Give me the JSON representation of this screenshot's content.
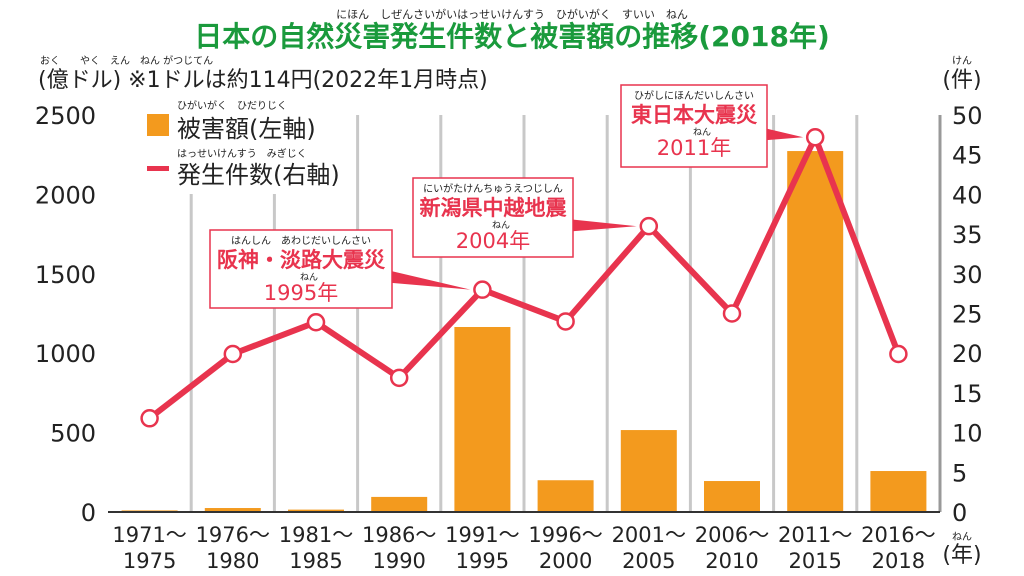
{
  "chart_data": {
    "type": "bar+line",
    "title": "日本の自然災害発生件数と被害額の推移(2018年)",
    "title_ruby": "にほん　しぜんさいがいはっせいけんすう　ひがいがく　すいい　ねん",
    "left_axis_label": "(億ドル) ※1ドルは約114円(2022年1月時点)",
    "left_axis_ruby": "おく　　やく　えん　ねん がつじてん",
    "right_axis_label": "(件)",
    "right_axis_ruby": "けん",
    "x_unit_label": "(年)",
    "x_unit_ruby": "ねん",
    "categories": [
      [
        "1971～",
        "1975"
      ],
      [
        "1976～",
        "1980"
      ],
      [
        "1981～",
        "1985"
      ],
      [
        "1986～",
        "1990"
      ],
      [
        "1991～",
        "1995"
      ],
      [
        "1996～",
        "2000"
      ],
      [
        "2001～",
        "2005"
      ],
      [
        "2006～",
        "2010"
      ],
      [
        "2011～",
        "2015"
      ],
      [
        "2016～",
        "2018"
      ]
    ],
    "left_ylim": [
      0,
      2500
    ],
    "left_ticks": [
      0,
      500,
      1000,
      1500,
      2000,
      2500
    ],
    "right_ylim": [
      0,
      50
    ],
    "right_ticks": [
      0,
      5,
      10,
      15,
      20,
      25,
      30,
      35,
      40,
      45,
      50
    ],
    "series": [
      {
        "name": "被害額(左軸)",
        "ruby": "ひがいがく　ひだりじく",
        "type": "bar",
        "axis": "left",
        "color": "#f39a1e",
        "values": [
          10,
          25,
          15,
          95,
          1165,
          200,
          516,
          195,
          2273,
          258
        ]
      },
      {
        "name": "発生件数(右軸)",
        "ruby": "はっせいけんすう　みぎじく",
        "type": "line",
        "axis": "right",
        "color": "#e8344e",
        "values": [
          11.8,
          19.9,
          23.9,
          16.9,
          28,
          24,
          36,
          25,
          47.2,
          19.9
        ]
      }
    ],
    "annotations": [
      {
        "ruby": "はんしん　あわじだいしんさい",
        "label": "阪神・淡路大震災",
        "year": "1995年",
        "year_ruby": "ねん",
        "category_index": 4
      },
      {
        "ruby": "にいがたけんちゅうえつじしん",
        "label": "新潟県中越地震",
        "year": "2004年",
        "year_ruby": "ねん",
        "category_index": 6
      },
      {
        "ruby": "ひがしにほんだいしんさい",
        "label": "東日本大震災",
        "year": "2011年",
        "year_ruby": "ねん",
        "category_index": 8
      }
    ],
    "colors": {
      "title": "#1a9a3c",
      "grid": "#c8c8c8",
      "annotation": "#e8344e"
    }
  }
}
